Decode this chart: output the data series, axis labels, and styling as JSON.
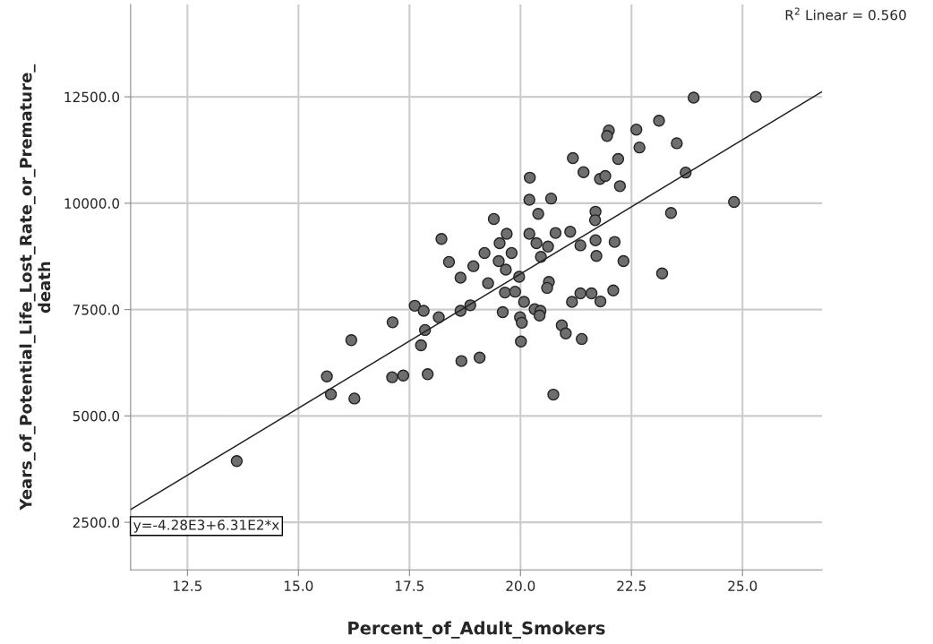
{
  "chart_data": {
    "type": "scatter",
    "xlabel": "Percent_of_Adult_Smokers",
    "ylabel": "Years_of_Potential_Life_Lost_Rate_or_Premature_\ndeath",
    "x": [
      23.9,
      23.12,
      22.61,
      21.99,
      21.95,
      22.68,
      23.52,
      21.18,
      22.2,
      21.42,
      21.79,
      21.91,
      22.24,
      23.72,
      20.21,
      20.2,
      20.69,
      20.4,
      21.69,
      21.68,
      23.39,
      19.4,
      18.22,
      19.69,
      20.2,
      20.79,
      21.12,
      19.53,
      20.36,
      20.62,
      21.35,
      21.69,
      22.12,
      18.39,
      19.19,
      19.8,
      19.51,
      20.46,
      21.71,
      22.32,
      18.94,
      19.67,
      18.65,
      19.97,
      19.27,
      20.64,
      20.6,
      23.19,
      19.65,
      19.88,
      21.35,
      21.6,
      22.09,
      20.08,
      21.16,
      21.8,
      17.62,
      17.82,
      18.65,
      18.87,
      18.16,
      19.6,
      19.99,
      20.32,
      20.45,
      20.43,
      20.03,
      17.85,
      20.93,
      21.02,
      21.38,
      17.76,
      20.01,
      19.08,
      18.67,
      17.91,
      17.36,
      20.74,
      16.19,
      15.64,
      15.73,
      16.26,
      17.11,
      13.61,
      17.12,
      25.3,
      24.81
    ],
    "series": [
      {
        "marker": "circle",
        "color": "#6e6e6e",
        "values": [
          12480,
          11940,
          11730,
          11710,
          11580,
          11310,
          11410,
          11060,
          11040,
          10730,
          10570,
          10640,
          10400,
          10720,
          10600,
          10080,
          10110,
          9750,
          9800,
          9600,
          9770,
          9630,
          9160,
          9280,
          9280,
          9300,
          9330,
          9060,
          9060,
          8980,
          9010,
          9130,
          9090,
          8620,
          8830,
          8830,
          8640,
          8740,
          8760,
          8640,
          8520,
          8440,
          8250,
          8270,
          8120,
          8150,
          8010,
          8350,
          7900,
          7920,
          7880,
          7880,
          7950,
          7680,
          7680,
          7690,
          7590,
          7470,
          7470,
          7600,
          7320,
          7440,
          7320,
          7510,
          7470,
          7360,
          7190,
          7020,
          7130,
          6940,
          6810,
          6660,
          6750,
          6370,
          6290,
          5980,
          5950,
          5500,
          6780,
          5930,
          5510,
          5410,
          5910,
          3940,
          7200,
          12500,
          10030
        ]
      },
      {
        "type": "line",
        "color": "#222222",
        "x": [
          11.22,
          26.79
        ],
        "values": [
          2800,
          12620
        ]
      }
    ],
    "annotations": [
      {
        "text": "y=-4.28E3+6.31E2*x",
        "x": 11.22,
        "y": 2800
      },
      "R$^{2}$ Linear = 0.560"
    ],
    "xlim": [
      11.22,
      26.79
    ],
    "xticks": [
      {
        "value": 12.5,
        "label": "12.5"
      },
      {
        "value": 15,
        "label": "15.0"
      },
      {
        "value": 17.5,
        "label": "17.5"
      },
      {
        "value": 20,
        "label": "20.0"
      },
      {
        "value": 22.5,
        "label": "22.5"
      },
      {
        "value": 25,
        "label": "25.0"
      }
    ],
    "ylim": [
      1380,
      14670
    ],
    "yticks": [
      {
        "value": 2500,
        "label": "2500.0"
      },
      {
        "value": 5000,
        "label": "5000.0"
      },
      {
        "value": 7500,
        "label": "7500.0"
      },
      {
        "value": 10000,
        "label": "10000.0"
      },
      {
        "value": 12500,
        "label": "12500.0"
      }
    ],
    "grid": true,
    "line_style": "solid"
  }
}
